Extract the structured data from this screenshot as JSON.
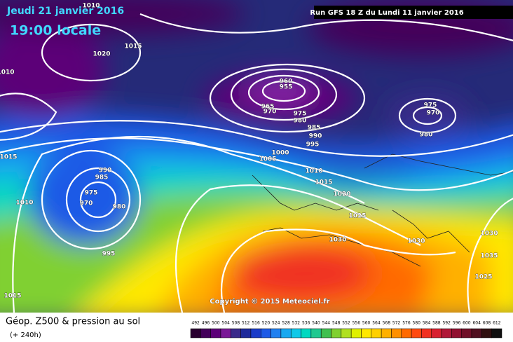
{
  "header": {
    "date": "Jeudi 21 janvier 2016",
    "time": "19:00 locale",
    "run": "Run GFS 18 Z du Lundi 11 janvier 2016"
  },
  "copyright": "Copyright © 2015 Meteociel.fr",
  "footer": {
    "title": "Géop. Z500 & pression au sol",
    "subtitle": "(+ 240h)"
  },
  "isobar_labels": [
    "1010",
    "1020",
    "1015",
    "1010",
    "1015",
    "1010",
    "990",
    "985",
    "975",
    "970",
    "980",
    "995",
    "1015",
    "960",
    "955",
    "965",
    "970",
    "975",
    "980",
    "985",
    "990",
    "995",
    "1000",
    "1005",
    "1010",
    "1015",
    "1020",
    "1025",
    "1030",
    "1030",
    "975",
    "970",
    "980",
    "1030",
    "1035",
    "1025"
  ],
  "scale": {
    "labels": [
      "492",
      "496",
      "500",
      "504",
      "508",
      "512",
      "516",
      "520",
      "524",
      "528",
      "532",
      "536",
      "540",
      "544",
      "548",
      "552",
      "556",
      "560",
      "564",
      "568",
      "572",
      "576",
      "580",
      "584",
      "588",
      "592",
      "596",
      "600",
      "604",
      "608",
      "612"
    ],
    "colors": [
      "#2a0030",
      "#44005a",
      "#5c0078",
      "#7a1896",
      "#3a2a8a",
      "#1e2a9a",
      "#1a3cc8",
      "#1e5ae6",
      "#2080f0",
      "#18a8f0",
      "#10c8e8",
      "#00d8c0",
      "#20c890",
      "#40c050",
      "#80d030",
      "#b0e020",
      "#e0f000",
      "#ffe800",
      "#ffd000",
      "#ffb000",
      "#ff9000",
      "#ff6a00",
      "#ff4a10",
      "#f03020",
      "#d82030",
      "#b01838",
      "#901030",
      "#701028",
      "#501020",
      "#301010",
      "#101010"
    ]
  }
}
